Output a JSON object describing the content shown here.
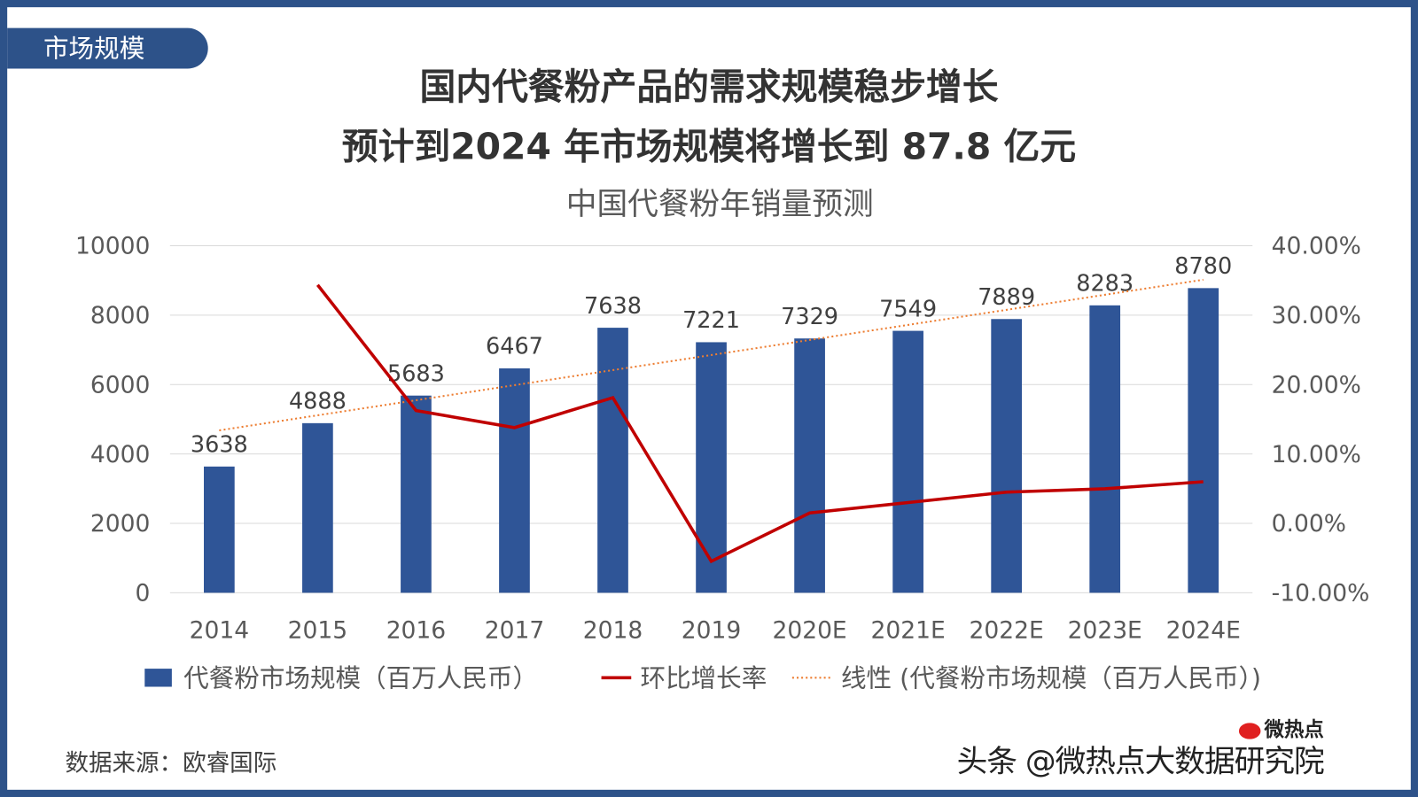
{
  "tag": "市场规模",
  "headline": [
    "国内代餐粉产品的需求规模稳步增长",
    "预计到2024 年市场规模将增长到 87.8 亿元"
  ],
  "source": "数据来源：欧睿国际",
  "watermark": {
    "text": "头条 @微热点大数据研究院",
    "logo": "微热点"
  },
  "colors": {
    "bar": "#2f5597",
    "line": "#c00000",
    "trend": "#ed7d31",
    "frame": "#2d5289"
  },
  "chart_data": {
    "type": "bar+line",
    "title": "中国代餐粉年销量预测",
    "categories": [
      "2014",
      "2015",
      "2016",
      "2017",
      "2018",
      "2019",
      "2020E",
      "2021E",
      "2022E",
      "2023E",
      "2024E"
    ],
    "series": [
      {
        "name": "代餐粉市场规模（百万人民币）",
        "type": "bar",
        "axis": "left",
        "values": [
          3638,
          4888,
          5683,
          6467,
          7638,
          7221,
          7329,
          7549,
          7889,
          8283,
          8780
        ]
      },
      {
        "name": "环比增长率",
        "type": "line",
        "axis": "right",
        "values": [
          null,
          34.36,
          16.26,
          13.8,
          18.11,
          -5.46,
          1.5,
          3.0,
          4.5,
          4.99,
          6.0
        ]
      },
      {
        "name": "线性 (代餐粉市场规模（百万人民币）)",
        "type": "trendline-linear",
        "axis": "left"
      }
    ],
    "left_axis": {
      "ylim": [
        0,
        10000
      ],
      "ticks": [
        "0",
        "2000",
        "4000",
        "6000",
        "8000",
        "10000"
      ]
    },
    "right_axis": {
      "ylim": [
        -10,
        40
      ],
      "ticks": [
        "-10.00%",
        "0.00%",
        "10.00%",
        "20.00%",
        "30.00%",
        "40.00%"
      ]
    },
    "grid": true,
    "legend": "bottom"
  }
}
